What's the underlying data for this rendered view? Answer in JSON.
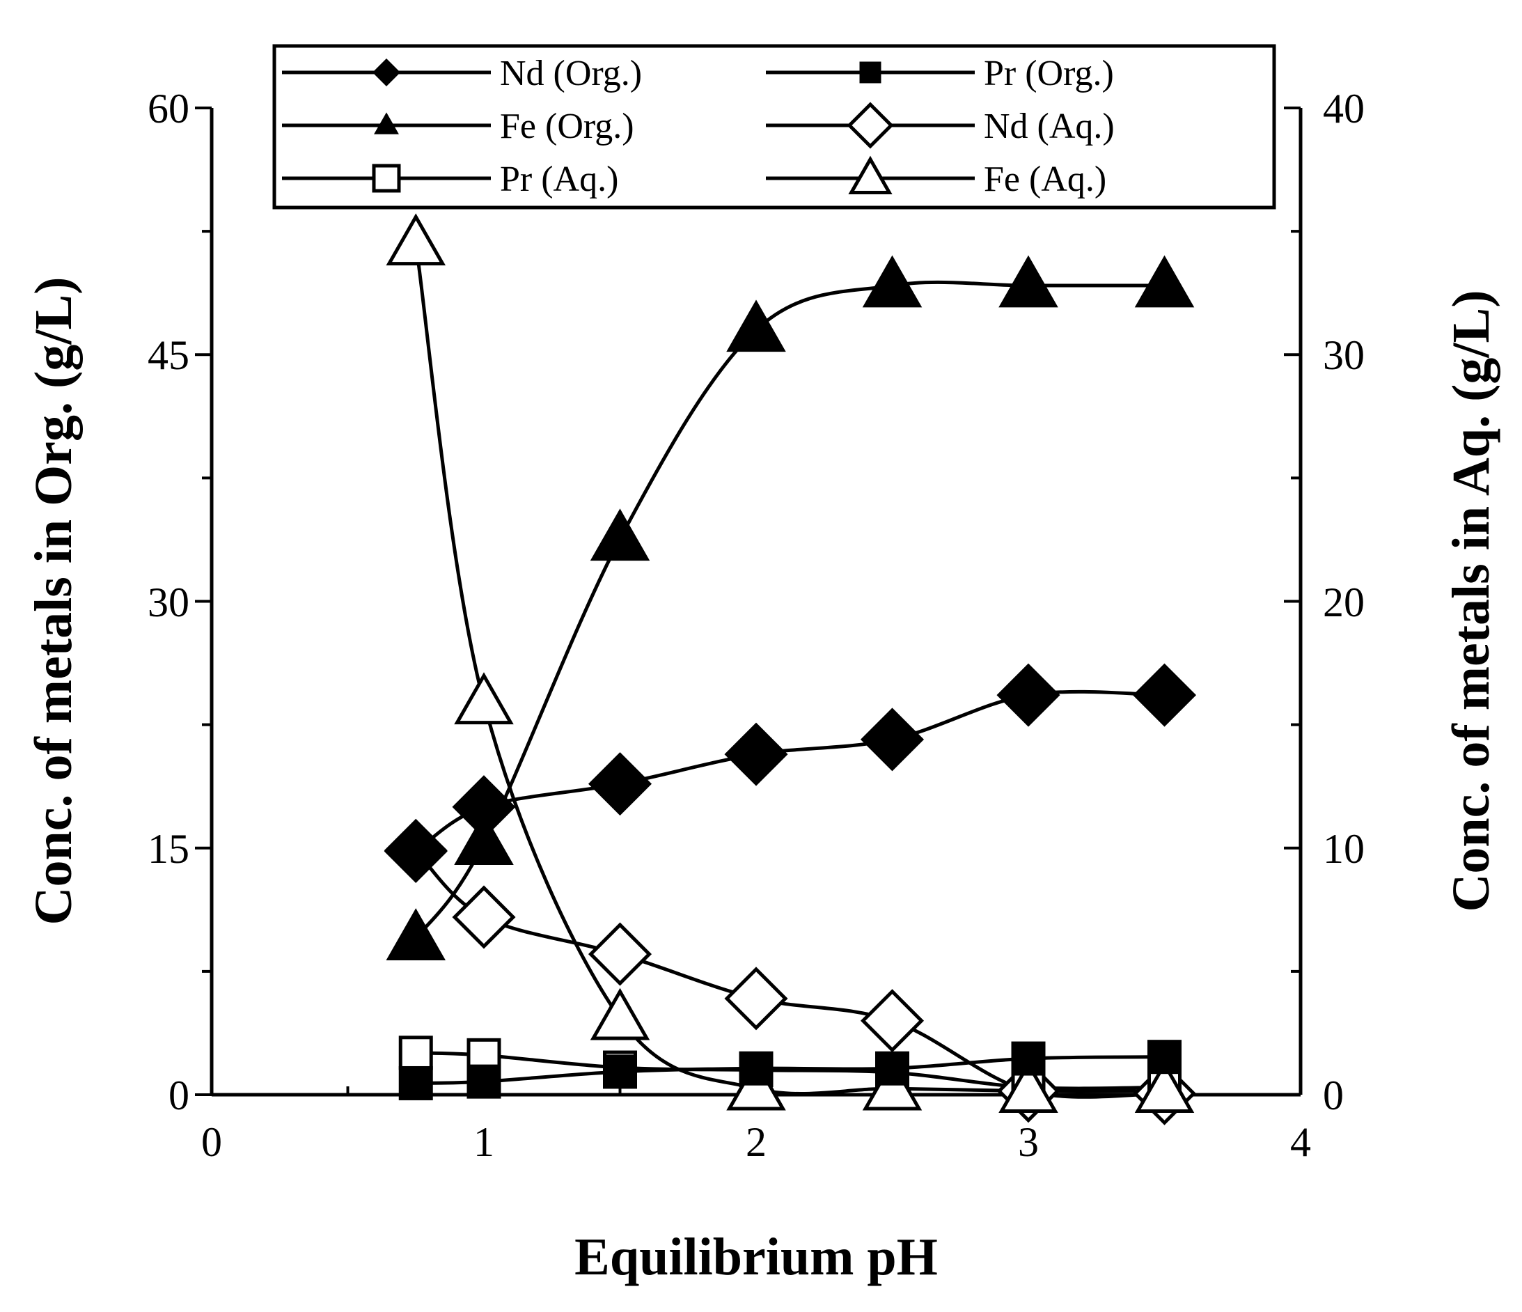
{
  "chart_data": {
    "type": "line",
    "title": "",
    "xlabel": "Equilibrium pH",
    "ylabel_left": "Conc. of metals in Org. (g/L)",
    "ylabel_right": "Conc. of metals in Aq. (g/L)",
    "xlim": [
      0,
      4
    ],
    "ylim_left": [
      0,
      60
    ],
    "ylim_right": [
      0,
      40
    ],
    "x_ticks": [
      "0",
      "1",
      "2",
      "3",
      "4"
    ],
    "y_left_ticks": [
      "0",
      "15",
      "30",
      "45",
      "60"
    ],
    "y_right_ticks": [
      "0",
      "10",
      "20",
      "30",
      "40"
    ],
    "grid": false,
    "legend_position": "top",
    "x": [
      0.75,
      1.0,
      1.5,
      2.0,
      2.5,
      3.0,
      3.5
    ],
    "series": [
      {
        "name": "Nd (Org.)",
        "axis": "left",
        "marker": "diamond",
        "filled": true,
        "values": [
          14.8,
          17.5,
          18.9,
          20.7,
          21.6,
          24.3,
          24.3
        ]
      },
      {
        "name": "Pr (Org.)",
        "axis": "left",
        "marker": "square",
        "filled": true,
        "values": [
          0.7,
          0.8,
          1.4,
          1.6,
          1.6,
          2.2,
          2.3
        ]
      },
      {
        "name": "Fe (Org.)",
        "axis": "left",
        "marker": "triangle",
        "filled": true,
        "values": [
          9.5,
          15.3,
          33.8,
          46.5,
          49.2,
          49.2,
          49.2
        ]
      },
      {
        "name": "Nd (Aq.)",
        "axis": "right",
        "marker": "diamond",
        "filled": false,
        "values": [
          9.9,
          7.2,
          5.7,
          3.9,
          3.0,
          0.15,
          0.05
        ]
      },
      {
        "name": "Pr (Aq.)",
        "axis": "right",
        "marker": "square",
        "filled": false,
        "values": [
          1.7,
          1.6,
          1.1,
          1.0,
          0.9,
          0.3,
          0.3
        ]
      },
      {
        "name": "Fe (Aq.)",
        "axis": "right",
        "marker": "triangle",
        "filled": false,
        "values": [
          34.5,
          15.9,
          3.1,
          0.25,
          0.25,
          0.15,
          0.15
        ]
      }
    ]
  }
}
